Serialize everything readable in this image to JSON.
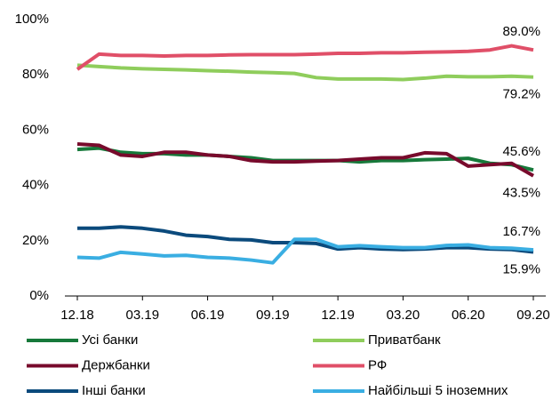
{
  "chart_data": {
    "type": "line",
    "categories": [
      "12.18",
      null,
      null,
      "03.19",
      null,
      null,
      "06.19",
      null,
      null,
      "09.19",
      null,
      null,
      "12.19",
      null,
      null,
      "03.20",
      null,
      null,
      "06.20",
      null,
      null,
      "09.20"
    ],
    "ylim": [
      0,
      100
    ],
    "yticks": [
      {
        "value": 0,
        "label": "0%"
      },
      {
        "value": 20,
        "label": "20%"
      },
      {
        "value": 40,
        "label": "40%"
      },
      {
        "value": 60,
        "label": "60%"
      },
      {
        "value": 80,
        "label": "80%"
      },
      {
        "value": 100,
        "label": "100%"
      }
    ],
    "series": [
      {
        "name": "Усі банки",
        "color": "#16793a",
        "values": [
          53,
          53.5,
          52,
          51.5,
          51.5,
          51,
          51,
          50.5,
          50,
          49,
          49,
          49,
          49,
          48.5,
          49,
          49,
          49.3,
          49.5,
          49.8,
          48,
          47.5,
          45.6
        ],
        "value_labels": [
          null,
          null,
          null,
          null,
          null,
          null,
          null,
          null,
          null,
          null,
          null,
          null,
          null,
          null,
          null,
          null,
          null,
          null,
          null,
          null,
          null,
          "45.6%"
        ]
      },
      {
        "name": "Приватбанк",
        "color": "#8fcd5c",
        "values": [
          83.5,
          83,
          82.5,
          82.2,
          82,
          81.8,
          81.5,
          81.3,
          81,
          80.8,
          80.5,
          79,
          78.5,
          78.5,
          78.5,
          78.3,
          78.8,
          79.5,
          79.3,
          79.3,
          79.5,
          79.2
        ],
        "value_labels": [
          null,
          null,
          null,
          null,
          null,
          null,
          null,
          null,
          null,
          null,
          null,
          null,
          null,
          null,
          null,
          null,
          null,
          null,
          null,
          null,
          null,
          "79.2%"
        ]
      },
      {
        "name": "Держбанки",
        "color": "#780a2c",
        "values": [
          55,
          54.5,
          51,
          50.5,
          52,
          52,
          51,
          50.5,
          49,
          48.5,
          48.5,
          48.8,
          49,
          49.5,
          50,
          50,
          51.8,
          51.5,
          47,
          47.5,
          48,
          43.5
        ],
        "value_labels": [
          null,
          null,
          null,
          null,
          null,
          null,
          null,
          null,
          null,
          null,
          null,
          null,
          null,
          null,
          null,
          null,
          null,
          null,
          null,
          null,
          null,
          "43.5%"
        ]
      },
      {
        "name": "РФ",
        "color": "#e04f68",
        "values": [
          82,
          87.5,
          87,
          87,
          86.8,
          87,
          87,
          87.2,
          87.3,
          87.3,
          87.3,
          87.5,
          87.8,
          87.8,
          88,
          88,
          88.2,
          88.3,
          88.5,
          89,
          90.5,
          89.0
        ],
        "value_labels": [
          null,
          null,
          null,
          null,
          null,
          null,
          null,
          null,
          null,
          null,
          null,
          null,
          null,
          null,
          null,
          null,
          null,
          null,
          null,
          null,
          null,
          "89.0%"
        ]
      },
      {
        "name": "Інші банки",
        "color": "#0b4a7c",
        "values": [
          24.5,
          24.5,
          25,
          24.5,
          23.5,
          22,
          21.5,
          20.5,
          20.3,
          19.3,
          19.3,
          19,
          17,
          17.5,
          17,
          16.8,
          17,
          17.5,
          17.5,
          17,
          16.8,
          15.9
        ],
        "value_labels": [
          null,
          null,
          null,
          null,
          null,
          null,
          null,
          null,
          null,
          null,
          null,
          null,
          null,
          null,
          null,
          null,
          null,
          null,
          null,
          null,
          null,
          "15.9%"
        ]
      },
      {
        "name": "Найбільші 5 іноземних",
        "color": "#3aaee2",
        "values": [
          14,
          13.7,
          15.8,
          15.2,
          14.5,
          14.7,
          14,
          13.7,
          13,
          12,
          20.5,
          20.5,
          17.8,
          18.2,
          17.8,
          17.5,
          17.5,
          18.3,
          18.5,
          17.5,
          17.3,
          16.7
        ],
        "value_labels": [
          null,
          null,
          null,
          null,
          null,
          null,
          null,
          null,
          null,
          null,
          null,
          null,
          null,
          null,
          null,
          null,
          null,
          null,
          null,
          null,
          null,
          "16.7%"
        ]
      }
    ]
  }
}
